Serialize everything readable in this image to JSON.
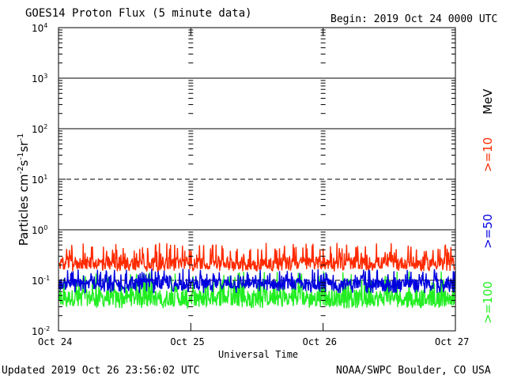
{
  "title": "GOES14 Proton Flux (5 minute data)",
  "begin": "Begin: 2019 Oct 24 0000 UTC",
  "updated": "Updated 2019 Oct 26 23:56:02 UTC",
  "credit": "NOAA/SWPC Boulder, CO USA",
  "xlabel": "Universal Time",
  "ylabel_base": "Particles cm",
  "ylabel_exp1": "-2",
  "ylabel_mid1": "s",
  "ylabel_exp2": "-1",
  "ylabel_mid2": "sr",
  "ylabel_exp3": "-1",
  "unit_label": "MeV",
  "chart_data": {
    "type": "line",
    "yscale": "log",
    "ylim": [
      0.01,
      10000
    ],
    "y_tick_bases": [
      "10",
      "10",
      "10",
      "10",
      "10",
      "10",
      "10"
    ],
    "y_tick_exps": [
      "-2",
      "-1",
      "0",
      "1",
      "2",
      "3",
      "4"
    ],
    "y_tick_values": [
      0.01,
      0.1,
      1,
      10,
      100,
      1000,
      10000
    ],
    "x_ticks": [
      "Oct 24",
      "Oct 25",
      "Oct 26",
      "Oct 27"
    ],
    "x_range_days": [
      0,
      3
    ],
    "dashed_gridlines": [
      0.1,
      10
    ],
    "solid_gridlines": [
      1,
      100,
      1000
    ],
    "series": [
      {
        "name": ">=10",
        "color": "#ff2a00",
        "base": 0.22,
        "spread": [
          0.15,
          0.55
        ]
      },
      {
        "name": ">=50",
        "color": "#0000dd",
        "base": 0.085,
        "spread": [
          0.055,
          0.17
        ]
      },
      {
        "name": ">=100",
        "color": "#22ee22",
        "base": 0.045,
        "spread": [
          0.028,
          0.15
        ]
      }
    ]
  }
}
